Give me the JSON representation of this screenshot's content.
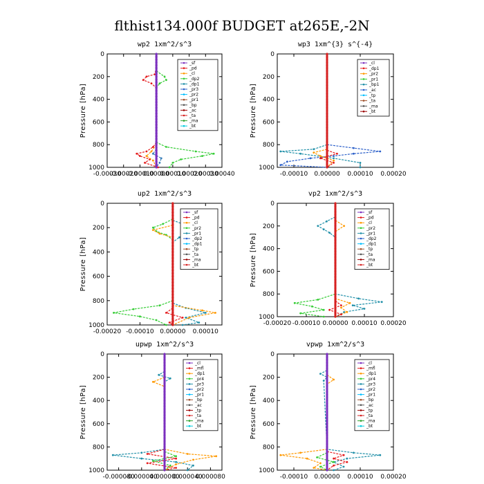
{
  "title": "flthist134.000f  BUDGET at265E,-2N",
  "chart_data": [
    {
      "type": "line",
      "title": "wp2   1xm^2/s^3",
      "ylabel": "Pressure [hPa]",
      "ylim": [
        1000,
        0
      ],
      "xlim": [
        -0.0003,
        0.0004
      ],
      "xticks": [
        -0.0003,
        -0.0002,
        -0.0001,
        0,
        0.0001,
        0.0002,
        0.0003,
        0.0004
      ],
      "xtick_labels": [
        "-0.00030",
        "-0.00020",
        "-0.00010",
        "0.00000",
        "0.00010",
        "0.00020",
        "0.00030",
        "0.00040"
      ],
      "yticks": [
        0,
        200,
        400,
        600,
        800,
        1000
      ],
      "ytick_labels": [
        "0",
        "200",
        "400",
        "600",
        "800",
        "1000"
      ],
      "legend": [
        "_sf",
        "_pd",
        "_cl",
        "_dp2",
        "_dp1",
        "_pr3",
        "_pr2",
        "_pr1",
        "_bp",
        "_ac",
        "_ta",
        "_ma",
        "_bt"
      ],
      "legend_position": "top-right",
      "series": [
        {
          "color": "#e41a1c",
          "y": [
            120,
            180,
            200,
            230,
            260,
            300,
            780,
            820,
            860,
            880,
            900,
            930,
            960,
            1000
          ],
          "x": [
            0,
            -1e-05,
            -6e-05,
            -8e-05,
            -3e-05,
            0,
            0,
            -2e-05,
            -6e-05,
            -0.00012,
            -0.0001,
            -4e-05,
            -7e-05,
            1e-05
          ]
        },
        {
          "color": "#33cc33",
          "y": [
            150,
            200,
            230,
            260,
            300,
            780,
            820,
            860,
            880,
            900,
            930,
            960,
            1000
          ],
          "x": [
            0,
            5e-05,
            6e-05,
            2e-05,
            0,
            0,
            6e-05,
            0.00024,
            0.00035,
            0.00028,
            0.00015,
            0.0001,
            8e-05
          ]
        },
        {
          "color": "#ff9900",
          "y": [
            800,
            860,
            900,
            940,
            1000
          ],
          "x": [
            0,
            -3e-05,
            -6e-05,
            -2e-05,
            0
          ]
        },
        {
          "color": "#377eb8",
          "y": [
            840,
            880,
            920,
            960,
            1000
          ],
          "x": [
            0,
            -2e-05,
            3e-05,
            2e-05,
            0
          ]
        }
      ],
      "vertical_line_color": "#7b2fbe"
    },
    {
      "type": "line",
      "title": "wp3   1xm^{3} s^{-4}",
      "ylabel": "Pressure [hPa]",
      "ylim": [
        1000,
        0
      ],
      "xlim": [
        -0.00015,
        0.0002
      ],
      "xticks": [
        -0.0001,
        0,
        0.0001,
        0.0002
      ],
      "xtick_labels": [
        "-0.00010",
        "0.00000",
        "0.00010",
        "0.00020"
      ],
      "yticks": [
        0,
        200,
        400,
        600,
        800,
        1000
      ],
      "ytick_labels": [
        "0",
        "200",
        "400",
        "600",
        "800",
        "1000"
      ],
      "legend": [
        "_cl",
        "_dp1",
        "_pr2",
        "_pr1",
        "_bp1",
        "_ac",
        "_tp",
        "_ta",
        "_ma",
        "_bt"
      ],
      "legend_position": "top-right",
      "series": [
        {
          "color": "#2b5fc9",
          "y": [
            800,
            830,
            860,
            880,
            900,
            920,
            950,
            980,
            1000
          ],
          "x": [
            0,
            8e-05,
            0.00016,
            8e-05,
            2e-05,
            -5e-05,
            -0.00012,
            -0.00014,
            0
          ]
        },
        {
          "color": "#1f8fa8",
          "y": [
            800,
            840,
            860,
            880,
            920,
            960,
            1000
          ],
          "x": [
            0,
            -4e-05,
            -0.00014,
            -8e-05,
            2e-05,
            0.0001,
            0.0001
          ]
        },
        {
          "color": "#ff9900",
          "y": [
            840,
            870,
            900,
            940,
            1000
          ],
          "x": [
            0,
            -4e-05,
            -2e-05,
            2e-05,
            0
          ]
        },
        {
          "color": "#e41a1c",
          "y": [
            850,
            880,
            920,
            960,
            1000
          ],
          "x": [
            0,
            3e-05,
            -2e-05,
            2e-05,
            0
          ]
        }
      ],
      "vertical_line_color": "#d62020"
    },
    {
      "type": "line",
      "title": "up2   1xm^2/s^3",
      "ylabel": "Pressure [hPa]",
      "ylim": [
        1000,
        0
      ],
      "xlim": [
        -0.0002,
        0.00015
      ],
      "xticks": [
        -0.0002,
        -0.0001,
        0,
        0.0001
      ],
      "xtick_labels": [
        "-0.00020",
        "-0.00010",
        "0.00000",
        "0.00010"
      ],
      "yticks": [
        0,
        200,
        400,
        600,
        800,
        1000
      ],
      "ytick_labels": [
        "0",
        "200",
        "400",
        "600",
        "800",
        "1000"
      ],
      "legend": [
        "_sf",
        "_pd",
        "_cl",
        "_pr2",
        "_pr1",
        "_dp2",
        "_dp1",
        "_tp",
        "_ta",
        "_ma",
        "_bt"
      ],
      "legend_position": "top-right",
      "series": [
        {
          "color": "#33cc33",
          "y": [
            130,
            170,
            200,
            230,
            260,
            300,
            800,
            840,
            870,
            900,
            930,
            960,
            1000
          ],
          "x": [
            0,
            -3e-05,
            -6e-05,
            -5e-05,
            -2e-05,
            0,
            0,
            -4e-05,
            -0.00012,
            -0.00018,
            -0.0001,
            -5e-05,
            -2e-05
          ]
        },
        {
          "color": "#1f8fa8",
          "y": [
            140,
            180,
            210,
            240,
            280,
            320,
            820,
            860,
            900,
            940,
            980,
            1000
          ],
          "x": [
            0,
            4e-05,
            9e-05,
            5e-05,
            2e-05,
            0,
            0,
            4e-05,
            0.0001,
            4e-05,
            8e-05,
            3e-05
          ]
        },
        {
          "color": "#ff9900",
          "y": [
            180,
            220,
            250,
            280,
            840,
            880,
            900,
            940,
            1000
          ],
          "x": [
            0,
            -6e-05,
            -4e-05,
            0,
            0,
            9e-05,
            0.00013,
            5e-05,
            0
          ]
        },
        {
          "color": "#e41a1c",
          "y": [
            860,
            900,
            940,
            980,
            1000
          ],
          "x": [
            0,
            -2e-05,
            3e-05,
            -1e-05,
            0
          ]
        }
      ],
      "vertical_line_color": "#d62020"
    },
    {
      "type": "line",
      "title": "vp2   1xm^2/s^3",
      "ylabel": "Pressure [hPa]",
      "ylim": [
        1000,
        0
      ],
      "xlim": [
        -0.0002,
        0.0002
      ],
      "xticks": [
        -0.0002,
        -0.0001,
        0,
        0.0001,
        0.0002
      ],
      "xtick_labels": [
        "-0.00020",
        "-0.00010",
        "0.00000",
        "0.00010",
        "0.00020"
      ],
      "yticks": [
        0,
        200,
        400,
        600,
        800,
        1000
      ],
      "ytick_labels": [
        "0",
        "200",
        "400",
        "600",
        "800",
        "1000"
      ],
      "legend": [
        "_sf",
        "_pd",
        "_cl",
        "_pr2",
        "_pr1",
        "_dp2",
        "_dp1",
        "_tp",
        "_ta",
        "_ma",
        "_bt"
      ],
      "legend_position": "top-right",
      "series": [
        {
          "color": "#1f8fa8",
          "y": [
            120,
            160,
            200,
            230,
            260,
            300,
            800,
            840,
            870,
            900,
            930,
            960,
            1000
          ],
          "x": [
            0,
            -3e-05,
            -6e-05,
            -4e-05,
            -2e-05,
            0,
            0,
            8e-05,
            0.00016,
            6e-05,
            0.0001,
            3e-05,
            0
          ]
        },
        {
          "color": "#33cc33",
          "y": [
            800,
            850,
            880,
            910,
            940,
            970,
            1000
          ],
          "x": [
            0,
            -6e-05,
            -0.00014,
            -8e-05,
            -4e-05,
            -0.00012,
            -4e-05
          ]
        },
        {
          "color": "#ff9900",
          "y": [
            150,
            200,
            250,
            840,
            880,
            920,
            960,
            1000
          ],
          "x": [
            0,
            3e-05,
            0,
            0,
            5e-05,
            2e-05,
            4e-05,
            0
          ]
        },
        {
          "color": "#e41a1c",
          "y": [
            860,
            900,
            940,
            980,
            1000
          ],
          "x": [
            0,
            2e-05,
            -2e-05,
            2e-05,
            0
          ]
        }
      ],
      "vertical_line_color": "#d62020"
    },
    {
      "type": "line",
      "title": "upwp   1xm^2/s^3",
      "ylabel": "Pressure [hPa]",
      "ylim": [
        1000,
        0
      ],
      "xlim": [
        -0.0001,
        0.0001
      ],
      "xticks": [
        -8e-05,
        -4e-05,
        0,
        4e-05,
        8e-05
      ],
      "xtick_labels": [
        "-0.000080",
        "-0.000040",
        "0.000000",
        "0.000040",
        "0.000080"
      ],
      "yticks": [
        0,
        200,
        400,
        600,
        800,
        1000
      ],
      "ytick_labels": [
        "0",
        "200",
        "400",
        "600",
        "800",
        "1000"
      ],
      "legend": [
        "_cl",
        "_mfl",
        "_dp1",
        "_pr4",
        "_pr3",
        "_pr2",
        "_pr1",
        "_bp",
        "_ac",
        "_tp",
        "_ta",
        "_ma",
        "_bt"
      ],
      "legend_position": "top-right",
      "series": [
        {
          "color": "#1f8fa8",
          "y": [
            150,
            180,
            210,
            240,
            820,
            850,
            870,
            900,
            930,
            960,
            1000
          ],
          "x": [
            0,
            -1e-05,
            1e-05,
            0,
            0,
            -4e-05,
            -9e-05,
            -4e-05,
            2e-05,
            5e-05,
            4e-05
          ]
        },
        {
          "color": "#ff9900",
          "y": [
            200,
            240,
            280,
            820,
            860,
            880,
            910,
            950,
            1000
          ],
          "x": [
            0,
            -2e-05,
            0,
            0,
            4e-05,
            9e-05,
            5e-05,
            2e-05,
            0
          ]
        },
        {
          "color": "#e41a1c",
          "y": [
            820,
            860,
            900,
            940,
            980,
            1000
          ],
          "x": [
            0,
            -3e-05,
            2e-05,
            -3e-05,
            2e-05,
            0
          ]
        },
        {
          "color": "#33cc33",
          "y": [
            840,
            880,
            920,
            960,
            1000
          ],
          "x": [
            0,
            2e-05,
            -2e-05,
            1e-05,
            0
          ]
        }
      ],
      "vertical_line_color": "#7b2fbe"
    },
    {
      "type": "line",
      "title": "vpwp   1xm^2/s^3",
      "ylabel": "Pressure [hPa]",
      "ylim": [
        1000,
        0
      ],
      "xlim": [
        -0.00015,
        0.0002
      ],
      "xticks": [
        -0.0001,
        0,
        0.0001,
        0.0002
      ],
      "xtick_labels": [
        "-0.00010",
        "0.00000",
        "0.00010",
        "0.00020"
      ],
      "yticks": [
        0,
        200,
        400,
        600,
        800,
        1000
      ],
      "ytick_labels": [
        "0",
        "200",
        "400",
        "600",
        "800",
        "1000"
      ],
      "legend": [
        "_cl",
        "_mfl",
        "_dp1",
        "_pr4",
        "_pr3",
        "_pr2",
        "_pr1",
        "_bp",
        "_ac",
        "_tp",
        "_ta",
        "_ma",
        "_bt"
      ],
      "legend_position": "top-right",
      "series": [
        {
          "color": "#1f8fa8",
          "y": [
            140,
            170,
            200,
            230,
            820,
            850,
            870,
            900,
            930,
            970,
            1000
          ],
          "x": [
            0,
            -2e-05,
            0,
            -1e-05,
            0,
            8e-05,
            0.00016,
            6e-05,
            2e-05,
            5e-05,
            2e-05
          ]
        },
        {
          "color": "#ff9900",
          "y": [
            180,
            220,
            260,
            820,
            850,
            870,
            900,
            940,
            980,
            1000
          ],
          "x": [
            0,
            2e-05,
            0,
            0,
            -8e-05,
            -0.00014,
            -6e-05,
            -2e-05,
            -4e-05,
            0
          ]
        },
        {
          "color": "#e41a1c",
          "y": [
            840,
            870,
            900,
            930,
            960,
            1000
          ],
          "x": [
            0,
            5e-05,
            2e-05,
            6e-05,
            2e-05,
            0
          ]
        },
        {
          "color": "#33cc33",
          "y": [
            850,
            890,
            930,
            970,
            1000
          ],
          "x": [
            0,
            -3e-05,
            2e-05,
            -2e-05,
            0
          ]
        }
      ],
      "vertical_line_color": "#7b2fbe"
    }
  ]
}
